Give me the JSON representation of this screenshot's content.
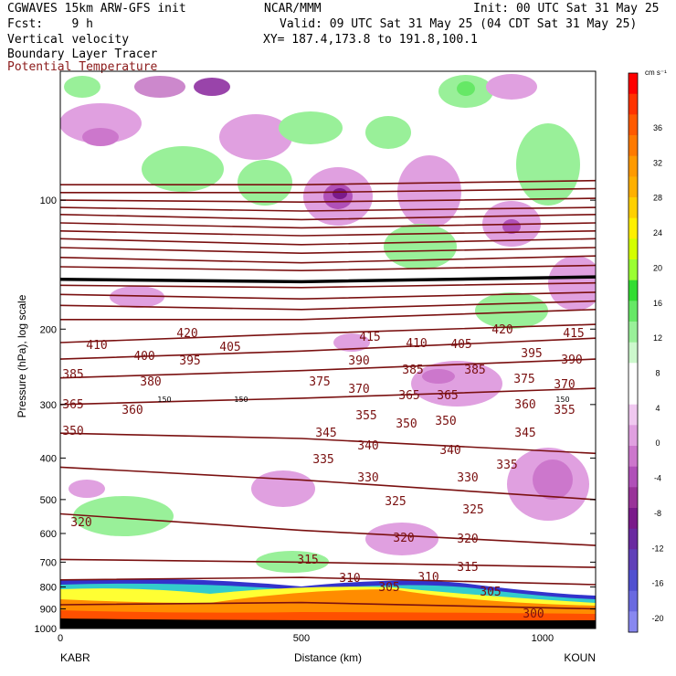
{
  "header": {
    "model": "CGWAVES 15km ARW-GFS init",
    "org": "NCAR/MMM",
    "init": "Init: 00 UTC Sat 31 May 25",
    "fcst": "Fcst:    9 h",
    "valid": "Valid: 09 UTC Sat 31 May 25 (04 CDT Sat 31 May 25)",
    "field1": "Vertical velocity",
    "field2": "Boundary Layer Tracer",
    "field3": "Potential Temperature",
    "xy": "XY= 187.4,173.8 to 191.8,100.1"
  },
  "colors": {
    "theta": "#7a1010",
    "field3_text": "#8b1a1a",
    "terrain": "#ff8c00"
  },
  "chart_data": {
    "type": "heatmap",
    "xlabel": "Distance (km)",
    "ylabel": "Pressure (hPa), log scale",
    "x_range": [
      0,
      1110
    ],
    "x_ticks": [
      "0",
      "500",
      "1000"
    ],
    "x_tick_values": [
      0,
      500,
      1000
    ],
    "endpoints": {
      "left": "KABR",
      "right": "KOUN"
    },
    "y_scale": "log",
    "y_range": [
      1000,
      50
    ],
    "y_ticks": [
      "100",
      "200",
      "300",
      "400",
      "500",
      "600",
      "700",
      "800",
      "900",
      "1000"
    ],
    "y_tick_values": [
      100,
      200,
      300,
      400,
      500,
      600,
      700,
      800,
      900,
      1000
    ],
    "colorbar": {
      "unit": "cm s⁻¹",
      "labels": [
        "36",
        "32",
        "28",
        "24",
        "20",
        "16",
        "12",
        "8",
        "4",
        "0",
        "-4",
        "-8",
        "-12",
        "-16",
        "-20"
      ],
      "label_values": [
        36,
        32,
        28,
        24,
        20,
        16,
        12,
        8,
        4,
        0,
        -4,
        -8,
        -12,
        -16,
        -20
      ],
      "colors": [
        "#ff0000",
        "#ff3300",
        "#ff5a00",
        "#ff7a00",
        "#ff9a00",
        "#ffb000",
        "#ffd000",
        "#fff000",
        "#d4ff00",
        "#9aff33",
        "#33dd33",
        "#66e866",
        "#99f099",
        "#ccf8cc",
        "#ffffff",
        "#ffffff",
        "#f0c8f0",
        "#e0a0e0",
        "#cc77cc",
        "#b050b8",
        "#993399",
        "#7a1a8a",
        "#6a2aa0",
        "#6040b8",
        "#5050d0",
        "#6a6ae0",
        "#8888f0"
      ]
    },
    "theta_contours": [
      {
        "label": "420",
        "p": [
          [
            0,
            92
          ],
          [
            500,
            92
          ],
          [
            1110,
            90
          ]
        ]
      },
      {
        "label": "415",
        "p": [
          [
            0,
            96
          ],
          [
            500,
            96
          ],
          [
            1110,
            94
          ]
        ]
      },
      {
        "label": "410",
        "p": [
          [
            0,
            100
          ],
          [
            500,
            101
          ],
          [
            1110,
            99
          ]
        ]
      },
      {
        "label": "405",
        "p": [
          [
            0,
            104
          ],
          [
            500,
            106
          ],
          [
            1110,
            104
          ]
        ]
      },
      {
        "label": "400",
        "p": [
          [
            0,
            108
          ],
          [
            500,
            111
          ],
          [
            1110,
            108
          ]
        ]
      },
      {
        "label": "395",
        "p": [
          [
            0,
            113
          ],
          [
            500,
            116
          ],
          [
            1110,
            113
          ]
        ]
      },
      {
        "label": "390",
        "p": [
          [
            0,
            118
          ],
          [
            500,
            121
          ],
          [
            1110,
            118
          ]
        ]
      },
      {
        "label": "385",
        "p": [
          [
            0,
            123
          ],
          [
            500,
            127
          ],
          [
            1110,
            123
          ]
        ]
      },
      {
        "label": "380",
        "p": [
          [
            0,
            129
          ],
          [
            500,
            133
          ],
          [
            1110,
            129
          ]
        ]
      },
      {
        "label": "375",
        "p": [
          [
            0,
            136
          ],
          [
            500,
            140
          ],
          [
            1110,
            135
          ]
        ]
      },
      {
        "label": "370",
        "p": [
          [
            0,
            143
          ],
          [
            500,
            146
          ],
          [
            1110,
            142
          ]
        ]
      },
      {
        "label": "365",
        "p": [
          [
            0,
            158
          ],
          [
            500,
            160
          ],
          [
            1110,
            156
          ]
        ]
      },
      {
        "label": "360",
        "p": [
          [
            0,
            166
          ],
          [
            500,
            170
          ],
          [
            1110,
            164
          ]
        ]
      },
      {
        "label": "355",
        "p": [
          [
            0,
            176
          ],
          [
            500,
            180
          ],
          [
            1110,
            172
          ]
        ]
      },
      {
        "label": "350",
        "p": [
          [
            0,
            190
          ],
          [
            500,
            190
          ],
          [
            1110,
            180
          ]
        ]
      },
      {
        "label": "345",
        "p": [
          [
            0,
            215
          ],
          [
            500,
            205
          ],
          [
            1110,
            195
          ]
        ]
      },
      {
        "label": "340",
        "p": [
          [
            0,
            235
          ],
          [
            500,
            225
          ],
          [
            1110,
            210
          ]
        ]
      },
      {
        "label": "335",
        "p": [
          [
            0,
            260
          ],
          [
            500,
            250
          ],
          [
            1110,
            235
          ]
        ]
      },
      {
        "label": "330",
        "p": [
          [
            0,
            300
          ],
          [
            500,
            290
          ],
          [
            1110,
            275
          ]
        ]
      },
      {
        "label": "325",
        "p": [
          [
            0,
            350
          ],
          [
            500,
            360
          ],
          [
            1110,
            390
          ]
        ]
      },
      {
        "label": "320",
        "p": [
          [
            0,
            420
          ],
          [
            500,
            450
          ],
          [
            1110,
            500
          ]
        ]
      },
      {
        "label": "315",
        "p": [
          [
            0,
            540
          ],
          [
            500,
            590
          ],
          [
            1110,
            640
          ]
        ]
      },
      {
        "label": "310",
        "p": [
          [
            0,
            690
          ],
          [
            500,
            700
          ],
          [
            1110,
            720
          ]
        ]
      },
      {
        "label": "305",
        "p": [
          [
            0,
            770
          ],
          [
            500,
            760
          ],
          [
            1110,
            790
          ]
        ]
      },
      {
        "label": "300",
        "p": [
          [
            0,
            880
          ],
          [
            500,
            870
          ],
          [
            1110,
            900
          ]
        ]
      }
    ],
    "tropopause": {
      "label": "150",
      "p": [
        [
          0,
          153
        ],
        [
          500,
          155
        ],
        [
          1110,
          151
        ]
      ]
    },
    "contour_labels": [
      {
        "t": "420",
        "x": 205,
        "y": 369
      },
      {
        "t": "415",
        "x": 405,
        "y": 373
      },
      {
        "t": "420",
        "x": 550,
        "y": 365
      },
      {
        "t": "415",
        "x": 628,
        "y": 369
      },
      {
        "t": "410",
        "x": 106,
        "y": 382
      },
      {
        "t": "405",
        "x": 252,
        "y": 384
      },
      {
        "t": "410",
        "x": 456,
        "y": 380
      },
      {
        "t": "405",
        "x": 505,
        "y": 381
      },
      {
        "t": "400",
        "x": 158,
        "y": 394
      },
      {
        "t": "395",
        "x": 208,
        "y": 399
      },
      {
        "t": "390",
        "x": 393,
        "y": 399
      },
      {
        "t": "395",
        "x": 582,
        "y": 391
      },
      {
        "t": "390",
        "x": 626,
        "y": 398
      },
      {
        "t": "385",
        "x": 80,
        "y": 414
      },
      {
        "t": "380",
        "x": 165,
        "y": 422
      },
      {
        "t": "385",
        "x": 452,
        "y": 409
      },
      {
        "t": "385",
        "x": 520,
        "y": 409
      },
      {
        "t": "375",
        "x": 350,
        "y": 422
      },
      {
        "t": "370",
        "x": 393,
        "y": 430
      },
      {
        "t": "375",
        "x": 574,
        "y": 419
      },
      {
        "t": "370",
        "x": 618,
        "y": 425
      },
      {
        "t": "365",
        "x": 80,
        "y": 447
      },
      {
        "t": "360",
        "x": 145,
        "y": 453
      },
      {
        "t": "365",
        "x": 448,
        "y": 437
      },
      {
        "t": "365",
        "x": 490,
        "y": 437
      },
      {
        "t": "355",
        "x": 401,
        "y": 459
      },
      {
        "t": "360",
        "x": 575,
        "y": 447
      },
      {
        "t": "355",
        "x": 618,
        "y": 453
      },
      {
        "t": "350",
        "x": 80,
        "y": 476
      },
      {
        "t": "350",
        "x": 445,
        "y": 468
      },
      {
        "t": "350",
        "x": 488,
        "y": 465
      },
      {
        "t": "345",
        "x": 357,
        "y": 478
      },
      {
        "t": "345",
        "x": 575,
        "y": 478
      },
      {
        "t": "340",
        "x": 403,
        "y": 492
      },
      {
        "t": "340",
        "x": 493,
        "y": 497
      },
      {
        "t": "335",
        "x": 354,
        "y": 507
      },
      {
        "t": "335",
        "x": 555,
        "y": 513
      },
      {
        "t": "330",
        "x": 403,
        "y": 527
      },
      {
        "t": "330",
        "x": 512,
        "y": 527
      },
      {
        "t": "325",
        "x": 433,
        "y": 553
      },
      {
        "t": "325",
        "x": 518,
        "y": 562
      },
      {
        "t": "320",
        "x": 89,
        "y": 576
      },
      {
        "t": "320",
        "x": 442,
        "y": 593
      },
      {
        "t": "320",
        "x": 512,
        "y": 594
      },
      {
        "t": "315",
        "x": 337,
        "y": 617
      },
      {
        "t": "315",
        "x": 512,
        "y": 625
      },
      {
        "t": "310",
        "x": 383,
        "y": 637
      },
      {
        "t": "310",
        "x": 469,
        "y": 636
      },
      {
        "t": "305",
        "x": 426,
        "y": 647
      },
      {
        "t": "305",
        "x": 537,
        "y": 652
      },
      {
        "t": "300",
        "x": 584,
        "y": 676
      }
    ],
    "tropo_labels": [
      {
        "t": "150",
        "x": 180,
        "y": 437
      },
      {
        "t": "150",
        "x": 264,
        "y": 437
      },
      {
        "t": "150",
        "x": 616,
        "y": 437
      }
    ],
    "w_blobs": [
      {
        "c": "#cc88cc",
        "x": 175,
        "y": 95,
        "rx": 28,
        "ry": 12
      },
      {
        "c": "#9944aa",
        "x": 232,
        "y": 95,
        "rx": 20,
        "ry": 10
      },
      {
        "c": "#99f099",
        "x": 90,
        "y": 95,
        "rx": 20,
        "ry": 12
      },
      {
        "c": "#99f099",
        "x": 510,
        "y": 100,
        "rx": 30,
        "ry": 18
      },
      {
        "c": "#66e866",
        "x": 510,
        "y": 97,
        "rx": 10,
        "ry": 8
      },
      {
        "c": "#e0a0e0",
        "x": 560,
        "y": 95,
        "rx": 28,
        "ry": 14
      },
      {
        "c": "#e0a0e0",
        "x": 110,
        "y": 135,
        "rx": 45,
        "ry": 22
      },
      {
        "c": "#cc77cc",
        "x": 110,
        "y": 150,
        "rx": 20,
        "ry": 10
      },
      {
        "c": "#99f099",
        "x": 200,
        "y": 185,
        "rx": 45,
        "ry": 25
      },
      {
        "c": "#99f099",
        "x": 290,
        "y": 200,
        "rx": 30,
        "ry": 25
      },
      {
        "c": "#e0a0e0",
        "x": 280,
        "y": 150,
        "rx": 40,
        "ry": 25
      },
      {
        "c": "#e0a0e0",
        "x": 370,
        "y": 215,
        "rx": 38,
        "ry": 32
      },
      {
        "c": "#b050b8",
        "x": 370,
        "y": 215,
        "rx": 16,
        "ry": 14
      },
      {
        "c": "#7a1a8a",
        "x": 372,
        "y": 212,
        "rx": 8,
        "ry": 6
      },
      {
        "c": "#99f099",
        "x": 340,
        "y": 140,
        "rx": 35,
        "ry": 18
      },
      {
        "c": "#99f099",
        "x": 425,
        "y": 145,
        "rx": 25,
        "ry": 18
      },
      {
        "c": "#e0a0e0",
        "x": 470,
        "y": 210,
        "rx": 35,
        "ry": 40
      },
      {
        "c": "#99f099",
        "x": 460,
        "y": 270,
        "rx": 40,
        "ry": 25
      },
      {
        "c": "#e0a0e0",
        "x": 560,
        "y": 245,
        "rx": 32,
        "ry": 25
      },
      {
        "c": "#b050b8",
        "x": 560,
        "y": 248,
        "rx": 10,
        "ry": 8
      },
      {
        "c": "#99f099",
        "x": 600,
        "y": 180,
        "rx": 35,
        "ry": 45
      },
      {
        "c": "#e0a0e0",
        "x": 630,
        "y": 310,
        "rx": 30,
        "ry": 30
      },
      {
        "c": "#99f099",
        "x": 560,
        "y": 340,
        "rx": 40,
        "ry": 20
      },
      {
        "c": "#e0a0e0",
        "x": 150,
        "y": 325,
        "rx": 30,
        "ry": 12
      },
      {
        "c": "#e0a0e0",
        "x": 385,
        "y": 375,
        "rx": 20,
        "ry": 10
      },
      {
        "c": "#e0a0e0",
        "x": 500,
        "y": 420,
        "rx": 50,
        "ry": 25
      },
      {
        "c": "#cc77cc",
        "x": 480,
        "y": 412,
        "rx": 18,
        "ry": 8
      },
      {
        "c": "#e0a0e0",
        "x": 600,
        "y": 530,
        "rx": 45,
        "ry": 40
      },
      {
        "c": "#cc77cc",
        "x": 605,
        "y": 525,
        "rx": 22,
        "ry": 22
      },
      {
        "c": "#99f099",
        "x": 135,
        "y": 565,
        "rx": 55,
        "ry": 22
      },
      {
        "c": "#e0a0e0",
        "x": 310,
        "y": 535,
        "rx": 35,
        "ry": 20
      },
      {
        "c": "#e0a0e0",
        "x": 95,
        "y": 535,
        "rx": 20,
        "ry": 10
      },
      {
        "c": "#99f099",
        "x": 320,
        "y": 615,
        "rx": 40,
        "ry": 12
      },
      {
        "c": "#e0a0e0",
        "x": 440,
        "y": 590,
        "rx": 40,
        "ry": 18
      }
    ]
  }
}
